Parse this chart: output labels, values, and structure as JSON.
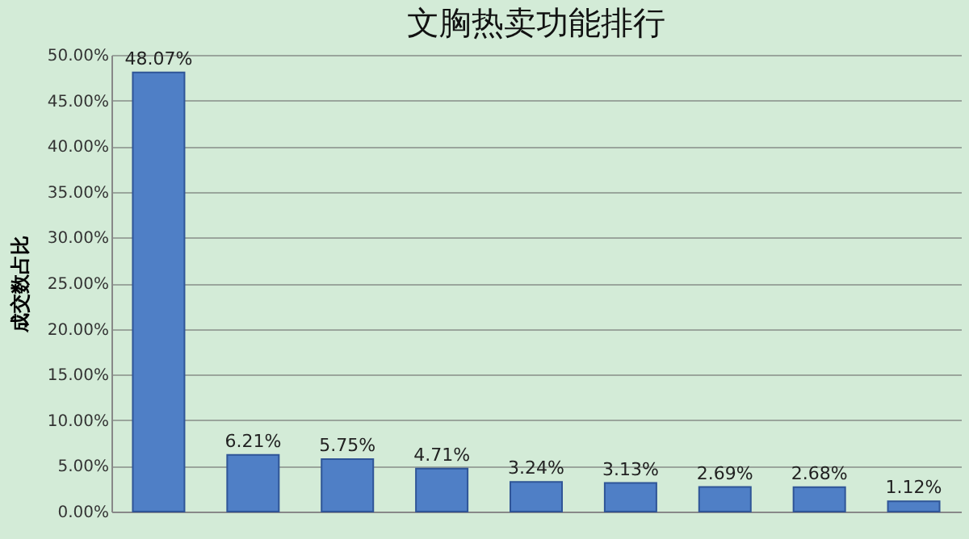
{
  "chart_data": {
    "type": "bar",
    "title": "文胸热卖功能排行",
    "ylabel": "成交数占比",
    "categories": [
      null,
      null,
      null,
      null,
      null,
      null,
      null,
      null,
      null
    ],
    "values": [
      48.07,
      6.21,
      5.75,
      4.71,
      3.24,
      3.13,
      2.69,
      2.68,
      1.12
    ],
    "value_labels": [
      "48.07%",
      "6.21%",
      "5.75%",
      "4.71%",
      "3.24%",
      "3.13%",
      "2.69%",
      "2.68%",
      "1.12%"
    ],
    "color": "#4f7fc6",
    "ylim": [
      0,
      50
    ],
    "yticks": [
      {
        "value": 0,
        "label": "0.00%"
      },
      {
        "value": 5,
        "label": "5.00%"
      },
      {
        "value": 10,
        "label": "10.00%"
      },
      {
        "value": 15,
        "label": "15.00%"
      },
      {
        "value": 20,
        "label": "20.00%"
      },
      {
        "value": 25,
        "label": "25.00%"
      },
      {
        "value": 30,
        "label": "30.00%"
      },
      {
        "value": 35,
        "label": "35.00%"
      },
      {
        "value": 40,
        "label": "40.00%"
      },
      {
        "value": 45,
        "label": "45.00%"
      },
      {
        "value": 50,
        "label": "50.00%"
      }
    ],
    "grid": "y"
  }
}
